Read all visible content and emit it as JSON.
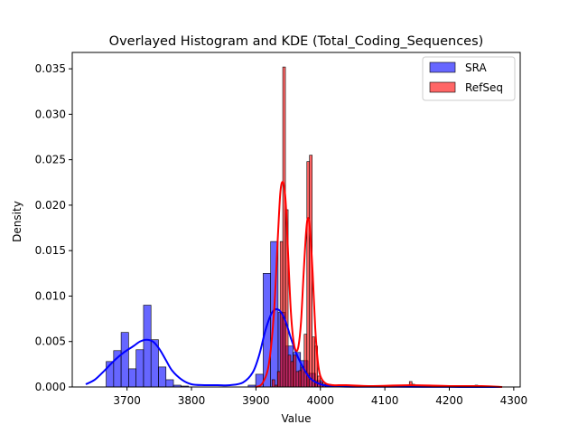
{
  "chart_data": {
    "type": "histogram",
    "title": "Overlayed Histogram and KDE (Total_Coding_Sequences)",
    "xlabel": "Value",
    "ylabel": "Density",
    "xlim": [
      3615,
      4310
    ],
    "ylim": [
      0,
      0.0368
    ],
    "xticks": [
      3700,
      3800,
      3900,
      4000,
      4100,
      4200,
      4300
    ],
    "yticks": [
      0.0,
      0.005,
      0.01,
      0.015,
      0.02,
      0.025,
      0.03,
      0.035
    ],
    "ytick_labels": [
      "0.000",
      "0.005",
      "0.010",
      "0.015",
      "0.020",
      "0.025",
      "0.030",
      "0.035"
    ],
    "legend_position": "top-right",
    "series": [
      {
        "name": "SRA",
        "color": "#0000ff",
        "bar_fill": "rgba(0,0,255,0.6)",
        "bin_width": 11.6,
        "bins": [
          [
            3656.0,
            0.0
          ],
          [
            3667.6,
            0.0028
          ],
          [
            3679.2,
            0.004
          ],
          [
            3690.8,
            0.006
          ],
          [
            3702.4,
            0.002
          ],
          [
            3714.0,
            0.0041
          ],
          [
            3725.6,
            0.009
          ],
          [
            3737.2,
            0.0052
          ],
          [
            3748.8,
            0.0022
          ],
          [
            3760.4,
            0.0008
          ],
          [
            3772.0,
            0.0002
          ],
          [
            3783.6,
            0.0001
          ],
          [
            3795.2,
            0.0
          ],
          [
            3806.8,
            0.0
          ],
          [
            3818.4,
            0.0
          ],
          [
            3830.0,
            0.0
          ],
          [
            3841.6,
            0.0
          ],
          [
            3853.2,
            0.0
          ],
          [
            3864.8,
            0.0
          ],
          [
            3876.4,
            0.0
          ],
          [
            3888.0,
            0.0002
          ],
          [
            3899.6,
            0.0014
          ],
          [
            3911.2,
            0.0125
          ],
          [
            3922.8,
            0.016
          ],
          [
            3934.4,
            0.0082
          ],
          [
            3946.0,
            0.0045
          ],
          [
            3957.6,
            0.0038
          ],
          [
            3969.2,
            0.0029
          ],
          [
            3980.8,
            0.0015
          ],
          [
            3992.4,
            0.0007
          ],
          [
            4004.0,
            0.0003
          ],
          [
            4015.6,
            0.0001
          ],
          [
            4027.2,
            0.0
          ],
          [
            4038.8,
            0.0
          ]
        ],
        "kde_x": [
          3636,
          3650,
          3665,
          3680,
          3695,
          3710,
          3720,
          3730,
          3740,
          3750,
          3760,
          3770,
          3785,
          3800,
          3820,
          3840,
          3860,
          3880,
          3895,
          3905,
          3915,
          3925,
          3935,
          3945,
          3955,
          3965,
          3975,
          3985,
          4000,
          4015,
          4030,
          4050,
          4080,
          4120,
          4180,
          4240,
          4280
        ],
        "kde_y": [
          0.0003,
          0.0008,
          0.0018,
          0.0029,
          0.0038,
          0.0045,
          0.005,
          0.0052,
          0.005,
          0.0042,
          0.003,
          0.0018,
          0.0008,
          0.0003,
          0.0002,
          0.0002,
          0.0002,
          0.0005,
          0.0016,
          0.0035,
          0.0063,
          0.0082,
          0.0085,
          0.0074,
          0.0052,
          0.0033,
          0.0019,
          0.0009,
          0.0003,
          0.0001,
          5e-05,
          3e-05,
          2e-05,
          2e-05,
          1e-05,
          0.0,
          0.0
        ]
      },
      {
        "name": "RefSeq",
        "color": "#ff0000",
        "bar_fill": "rgba(255,0,0,0.6)",
        "bin_width": 4.15,
        "bins": [
          [
            3925.0,
            0.0008
          ],
          [
            3929.2,
            0.0002
          ],
          [
            3933.3,
            0.0017
          ],
          [
            3937.5,
            0.016
          ],
          [
            3941.6,
            0.0352
          ],
          [
            3945.8,
            0.0195
          ],
          [
            3949.9,
            0.0035
          ],
          [
            3954.1,
            0.0028
          ],
          [
            3958.2,
            0.0035
          ],
          [
            3962.4,
            0.0017
          ],
          [
            3966.5,
            0.0018
          ],
          [
            3970.7,
            0.0022
          ],
          [
            3974.8,
            0.0058
          ],
          [
            3979.0,
            0.0248
          ],
          [
            3983.1,
            0.0255
          ],
          [
            3987.3,
            0.0055
          ],
          [
            3991.4,
            0.0045
          ],
          [
            3995.6,
            0.0012
          ],
          [
            3999.7,
            0.0005
          ],
          [
            4003.9,
            0.0003
          ],
          [
            4008.0,
            0.0001
          ],
          [
            4020.0,
            0.0001
          ],
          [
            4045.0,
            0.0002
          ],
          [
            4080.0,
            0.0001
          ],
          [
            4110.0,
            0.0001
          ],
          [
            4138.0,
            0.0006
          ],
          [
            4142.1,
            0.0003
          ],
          [
            4170.0,
            0.0001
          ],
          [
            4200.0,
            0.0001
          ],
          [
            4240.0,
            0.0002
          ]
        ],
        "kde_x": [
          3900,
          3910,
          3920,
          3928,
          3934,
          3938,
          3942,
          3946,
          3950,
          3954,
          3958,
          3962,
          3966,
          3970,
          3974,
          3978,
          3981,
          3984,
          3988,
          3992,
          3996,
          4000,
          4008,
          4020,
          4040,
          4080,
          4140,
          4200,
          4250,
          4282
        ],
        "kde_y": [
          0.0,
          0.0004,
          0.0025,
          0.0082,
          0.0165,
          0.0215,
          0.0225,
          0.0205,
          0.0145,
          0.0085,
          0.0052,
          0.004,
          0.0045,
          0.0072,
          0.0125,
          0.0172,
          0.0186,
          0.0172,
          0.0125,
          0.0065,
          0.0028,
          0.0012,
          0.0004,
          0.0002,
          0.0002,
          0.0001,
          0.0002,
          0.0001,
          0.0001,
          0.0
        ]
      }
    ]
  }
}
